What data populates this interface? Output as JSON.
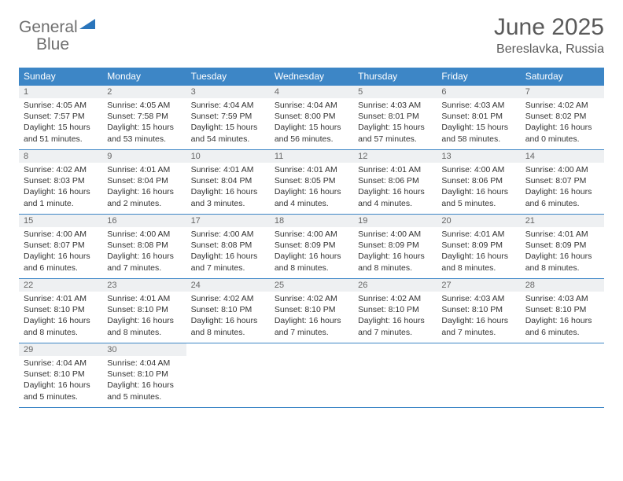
{
  "brand": {
    "name_gray": "General",
    "name_blue": "Blue"
  },
  "title": "June 2025",
  "location": "Bereslavka, Russia",
  "colors": {
    "header_bg": "#3d86c6",
    "header_text": "#ffffff",
    "daynum_bg": "#eef0f2",
    "rule": "#3d86c6",
    "brand_gray": "#6f6f6f",
    "brand_blue": "#2a75bb"
  },
  "dow": [
    "Sunday",
    "Monday",
    "Tuesday",
    "Wednesday",
    "Thursday",
    "Friday",
    "Saturday"
  ],
  "weeks": [
    [
      {
        "n": "1",
        "sunrise": "4:05 AM",
        "sunset": "7:57 PM",
        "daylight": "15 hours and 51 minutes."
      },
      {
        "n": "2",
        "sunrise": "4:05 AM",
        "sunset": "7:58 PM",
        "daylight": "15 hours and 53 minutes."
      },
      {
        "n": "3",
        "sunrise": "4:04 AM",
        "sunset": "7:59 PM",
        "daylight": "15 hours and 54 minutes."
      },
      {
        "n": "4",
        "sunrise": "4:04 AM",
        "sunset": "8:00 PM",
        "daylight": "15 hours and 56 minutes."
      },
      {
        "n": "5",
        "sunrise": "4:03 AM",
        "sunset": "8:01 PM",
        "daylight": "15 hours and 57 minutes."
      },
      {
        "n": "6",
        "sunrise": "4:03 AM",
        "sunset": "8:01 PM",
        "daylight": "15 hours and 58 minutes."
      },
      {
        "n": "7",
        "sunrise": "4:02 AM",
        "sunset": "8:02 PM",
        "daylight": "16 hours and 0 minutes."
      }
    ],
    [
      {
        "n": "8",
        "sunrise": "4:02 AM",
        "sunset": "8:03 PM",
        "daylight": "16 hours and 1 minute."
      },
      {
        "n": "9",
        "sunrise": "4:01 AM",
        "sunset": "8:04 PM",
        "daylight": "16 hours and 2 minutes."
      },
      {
        "n": "10",
        "sunrise": "4:01 AM",
        "sunset": "8:04 PM",
        "daylight": "16 hours and 3 minutes."
      },
      {
        "n": "11",
        "sunrise": "4:01 AM",
        "sunset": "8:05 PM",
        "daylight": "16 hours and 4 minutes."
      },
      {
        "n": "12",
        "sunrise": "4:01 AM",
        "sunset": "8:06 PM",
        "daylight": "16 hours and 4 minutes."
      },
      {
        "n": "13",
        "sunrise": "4:00 AM",
        "sunset": "8:06 PM",
        "daylight": "16 hours and 5 minutes."
      },
      {
        "n": "14",
        "sunrise": "4:00 AM",
        "sunset": "8:07 PM",
        "daylight": "16 hours and 6 minutes."
      }
    ],
    [
      {
        "n": "15",
        "sunrise": "4:00 AM",
        "sunset": "8:07 PM",
        "daylight": "16 hours and 6 minutes."
      },
      {
        "n": "16",
        "sunrise": "4:00 AM",
        "sunset": "8:08 PM",
        "daylight": "16 hours and 7 minutes."
      },
      {
        "n": "17",
        "sunrise": "4:00 AM",
        "sunset": "8:08 PM",
        "daylight": "16 hours and 7 minutes."
      },
      {
        "n": "18",
        "sunrise": "4:00 AM",
        "sunset": "8:09 PM",
        "daylight": "16 hours and 8 minutes."
      },
      {
        "n": "19",
        "sunrise": "4:00 AM",
        "sunset": "8:09 PM",
        "daylight": "16 hours and 8 minutes."
      },
      {
        "n": "20",
        "sunrise": "4:01 AM",
        "sunset": "8:09 PM",
        "daylight": "16 hours and 8 minutes."
      },
      {
        "n": "21",
        "sunrise": "4:01 AM",
        "sunset": "8:09 PM",
        "daylight": "16 hours and 8 minutes."
      }
    ],
    [
      {
        "n": "22",
        "sunrise": "4:01 AM",
        "sunset": "8:10 PM",
        "daylight": "16 hours and 8 minutes."
      },
      {
        "n": "23",
        "sunrise": "4:01 AM",
        "sunset": "8:10 PM",
        "daylight": "16 hours and 8 minutes."
      },
      {
        "n": "24",
        "sunrise": "4:02 AM",
        "sunset": "8:10 PM",
        "daylight": "16 hours and 8 minutes."
      },
      {
        "n": "25",
        "sunrise": "4:02 AM",
        "sunset": "8:10 PM",
        "daylight": "16 hours and 7 minutes."
      },
      {
        "n": "26",
        "sunrise": "4:02 AM",
        "sunset": "8:10 PM",
        "daylight": "16 hours and 7 minutes."
      },
      {
        "n": "27",
        "sunrise": "4:03 AM",
        "sunset": "8:10 PM",
        "daylight": "16 hours and 7 minutes."
      },
      {
        "n": "28",
        "sunrise": "4:03 AM",
        "sunset": "8:10 PM",
        "daylight": "16 hours and 6 minutes."
      }
    ],
    [
      {
        "n": "29",
        "sunrise": "4:04 AM",
        "sunset": "8:10 PM",
        "daylight": "16 hours and 5 minutes."
      },
      {
        "n": "30",
        "sunrise": "4:04 AM",
        "sunset": "8:10 PM",
        "daylight": "16 hours and 5 minutes."
      },
      null,
      null,
      null,
      null,
      null
    ]
  ],
  "labels": {
    "sunrise": "Sunrise:",
    "sunset": "Sunset:",
    "daylight": "Daylight:"
  }
}
